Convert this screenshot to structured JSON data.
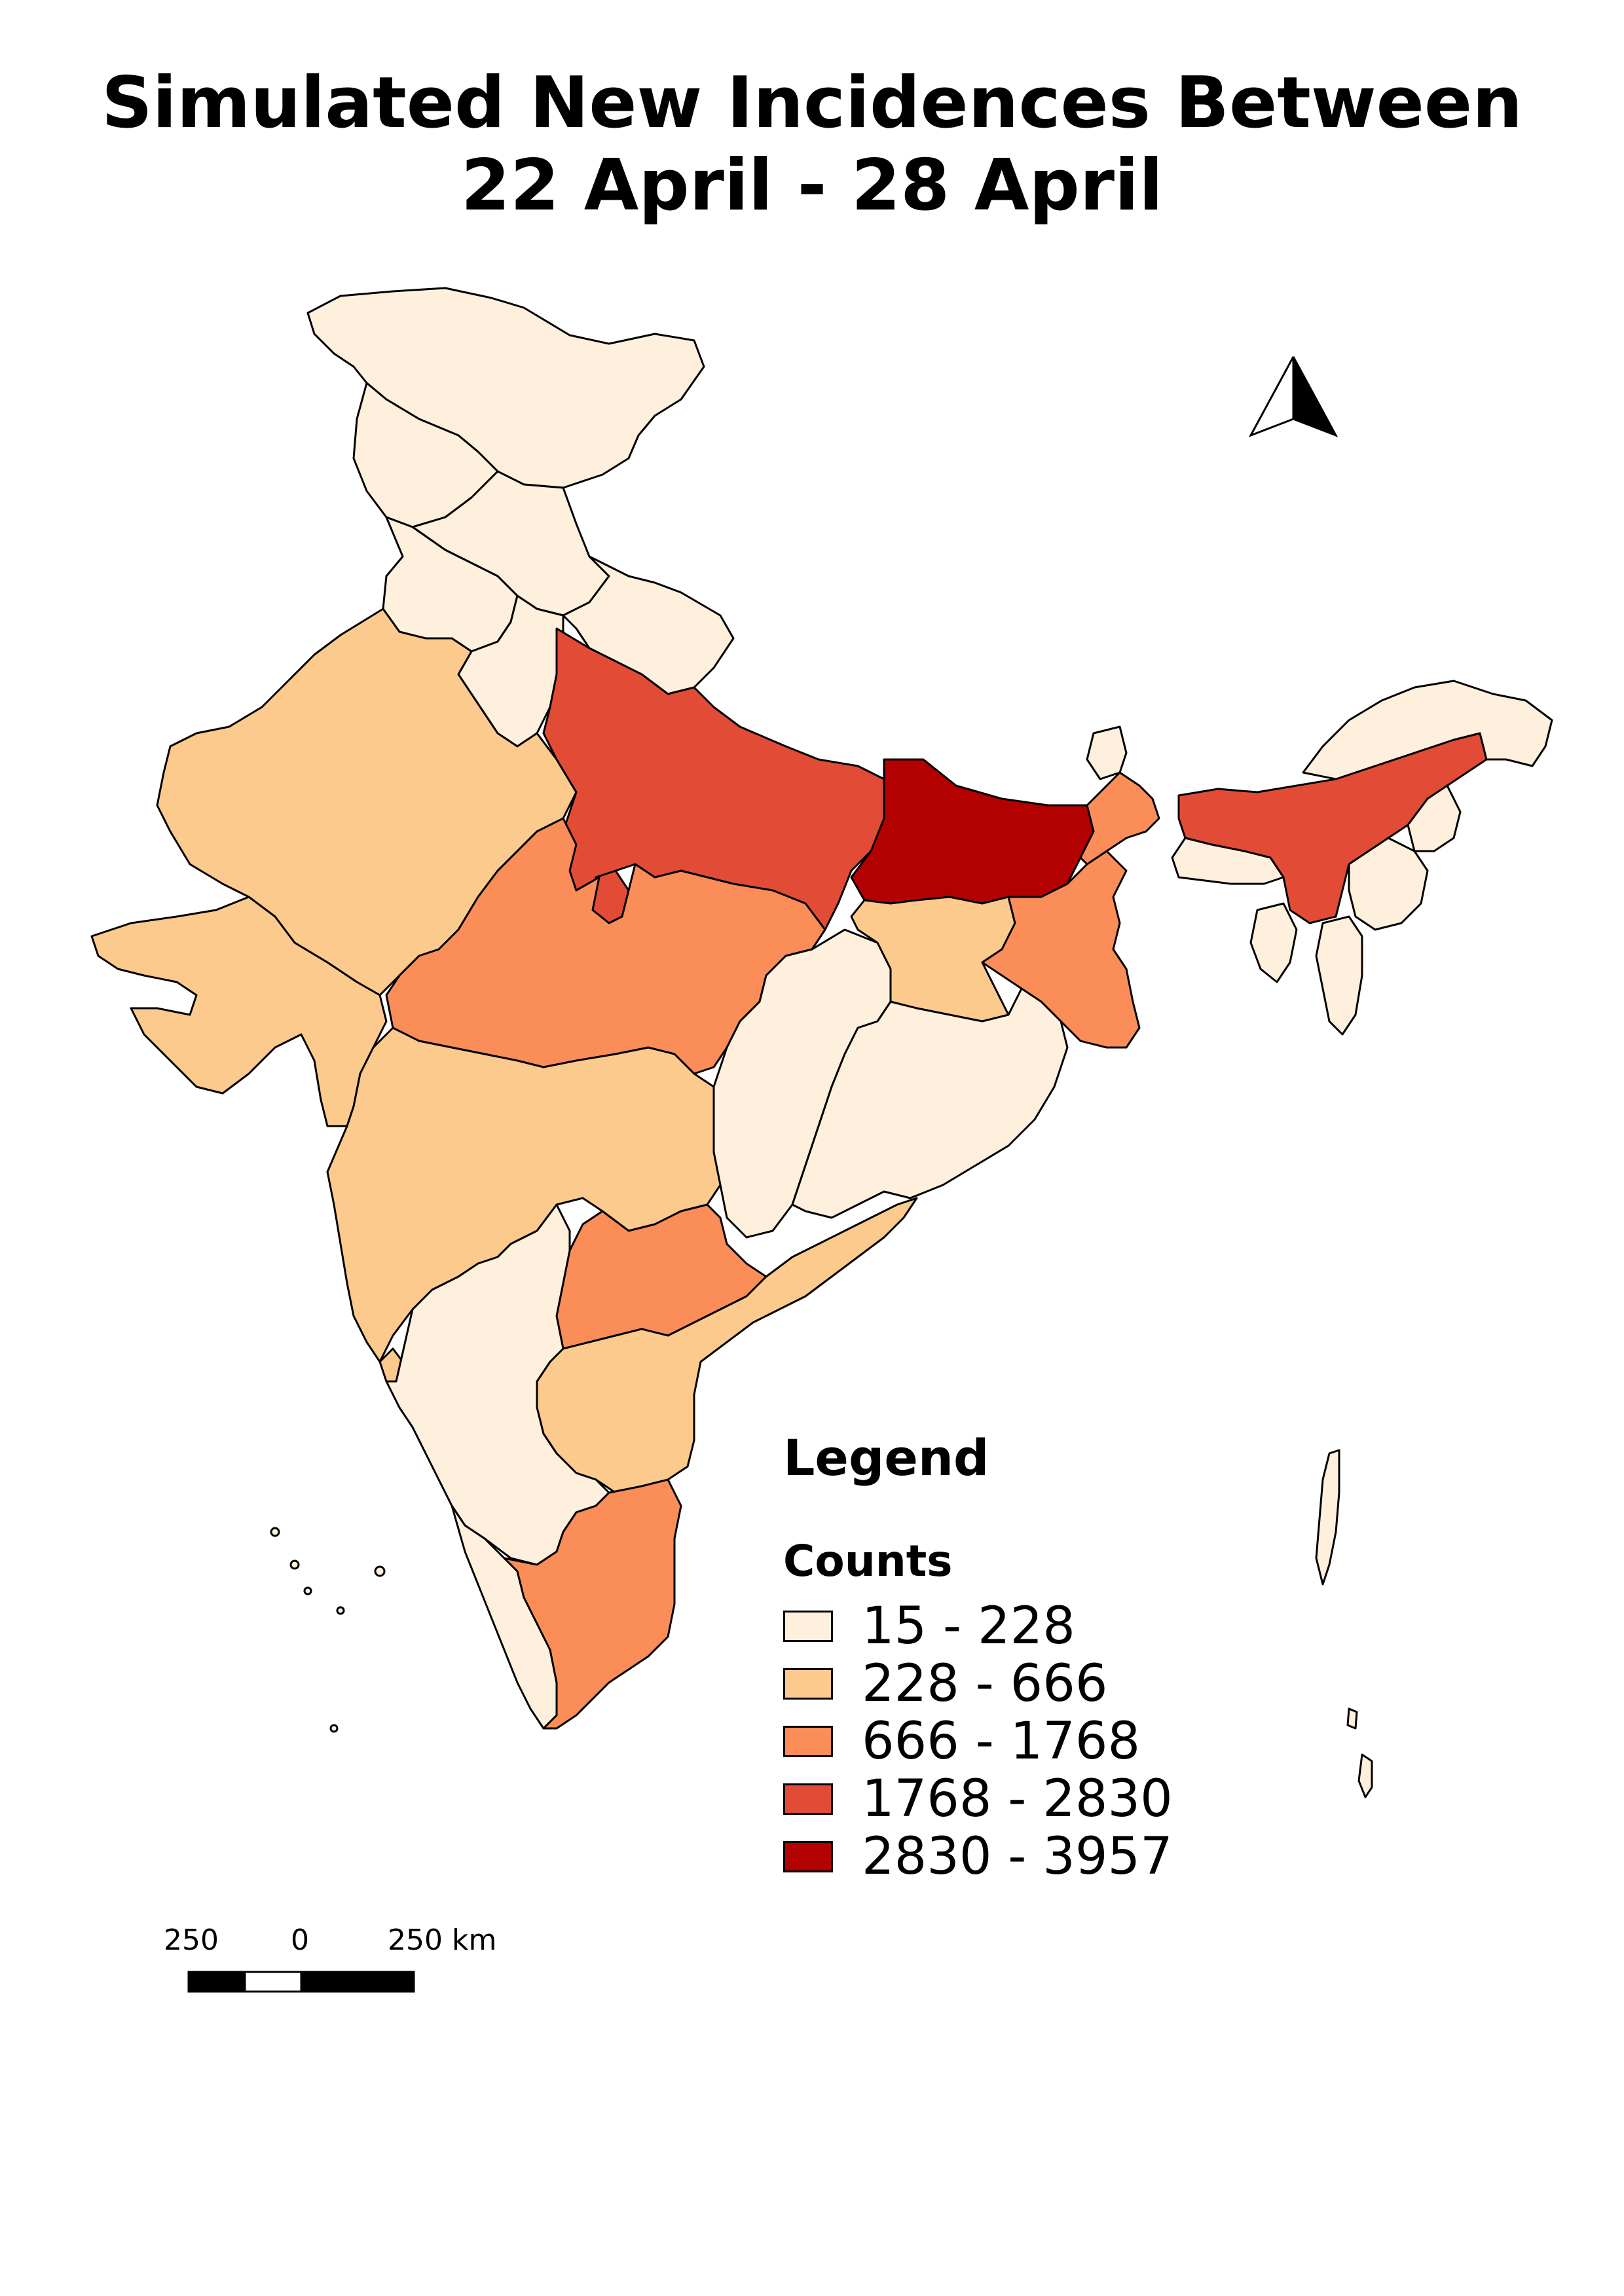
{
  "title": {
    "line1": "Simulated New Incidences Between",
    "line2": "22 April - 28 April"
  },
  "legend": {
    "heading": "Legend",
    "subheading": "Counts",
    "classes": [
      {
        "label": "15 - 228",
        "color": "#fff0dd"
      },
      {
        "label": "228 - 666",
        "color": "#fcca8d"
      },
      {
        "label": "666 - 1768",
        "color": "#fb8d59"
      },
      {
        "label": "1768 - 2830",
        "color": "#e24c36"
      },
      {
        "label": "2830 - 3957",
        "color": "#b30000"
      }
    ]
  },
  "scale_bar": {
    "left_label": "250",
    "mid_label": "0",
    "right_label": "250 km"
  },
  "north_arrow": {
    "icon": "north-arrow-icon"
  }
}
